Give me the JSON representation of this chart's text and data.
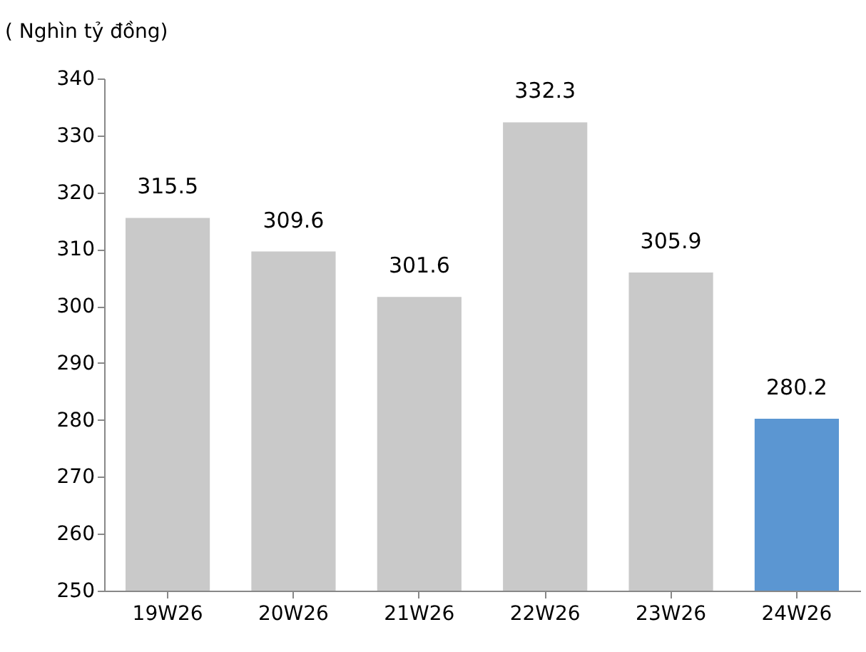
{
  "chart_data": {
    "type": "bar",
    "ylabel": "( Nghìn tỷ đồng)",
    "categories": [
      "19W26",
      "20W26",
      "21W26",
      "22W26",
      "23W26",
      "24W26"
    ],
    "values": [
      315.5,
      309.6,
      301.6,
      332.3,
      305.9,
      280.2
    ],
    "colors": [
      "#c9c9c9",
      "#c9c9c9",
      "#c9c9c9",
      "#c9c9c9",
      "#c9c9c9",
      "#5b96d2"
    ],
    "ylim": [
      250,
      340
    ],
    "yticks": [
      250,
      260,
      270,
      280,
      290,
      300,
      310,
      320,
      330,
      340
    ],
    "data_labels": true,
    "grid": false,
    "legend": false
  }
}
